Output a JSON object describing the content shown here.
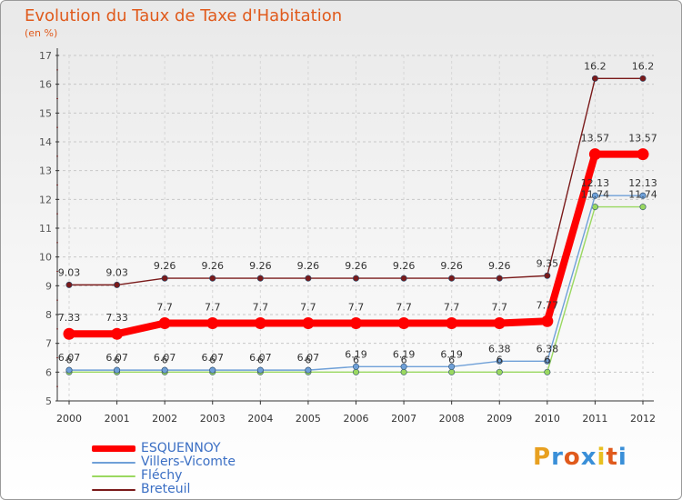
{
  "title": "Evolution du Taux de Taxe d'Habitation",
  "subtitle": "(en %)",
  "logo": {
    "text": "Proxiti",
    "colors": [
      "#e8a020",
      "#3a8fd8",
      "#e05a1c",
      "#3a8fd8",
      "#e8c020",
      "#e05a1c",
      "#3a8fd8"
    ]
  },
  "chart_data": {
    "type": "line",
    "title": "Evolution du Taux de Taxe d'Habitation",
    "ylabel": "(en %)",
    "xlabel": "",
    "ylim": [
      5,
      17
    ],
    "y_ticks": [
      "5",
      "6",
      "7",
      "8",
      "9",
      "10",
      "11",
      "12",
      "13",
      "14",
      "15",
      "16",
      "17"
    ],
    "categories": [
      "2000",
      "2001",
      "2002",
      "2003",
      "2004",
      "2005",
      "2006",
      "2007",
      "2008",
      "2009",
      "2010",
      "2011",
      "2012"
    ],
    "legend_position": "bottom-left",
    "series": [
      {
        "name": "ESQUENNOY",
        "color": "#ff0000",
        "values": [
          7.33,
          7.33,
          7.7,
          7.7,
          7.7,
          7.7,
          7.7,
          7.7,
          7.7,
          7.7,
          7.77,
          13.57,
          13.57
        ],
        "labels": [
          "7.33",
          "7.33",
          "7.7",
          "7.7",
          "7.7",
          "7.7",
          "7.7",
          "7.7",
          "7.7",
          "7.7",
          "7.77",
          "13.57",
          "13.57"
        ]
      },
      {
        "name": "Villers-Vicomte",
        "color": "#6fa0d8",
        "values": [
          6.07,
          6.07,
          6.07,
          6.07,
          6.07,
          6.07,
          6.19,
          6.19,
          6.19,
          6.38,
          6.38,
          12.13,
          12.13
        ],
        "labels": [
          "6.07",
          "6.07",
          "6.07",
          "6.07",
          "6.07",
          "6.07",
          "6.19",
          "6.19",
          "6.19",
          "6.38",
          "6.38",
          "12.13",
          "12.13"
        ]
      },
      {
        "name": "Fléchy",
        "color": "#9ad860",
        "values": [
          6,
          6,
          6,
          6,
          6,
          6,
          6,
          6,
          6,
          6,
          6,
          11.74,
          11.74
        ],
        "labels": [
          "6",
          "6",
          "6",
          "6",
          "6",
          "6",
          "6",
          "6",
          "6",
          "6",
          "6",
          "11.74",
          "11.74"
        ]
      },
      {
        "name": "Breteuil",
        "color": "#7a1a1a",
        "values": [
          9.03,
          9.03,
          9.26,
          9.26,
          9.26,
          9.26,
          9.26,
          9.26,
          9.26,
          9.26,
          9.35,
          16.2,
          16.2
        ],
        "labels": [
          "9.03",
          "9.03",
          "9.26",
          "9.26",
          "9.26",
          "9.26",
          "9.26",
          "9.26",
          "9.26",
          "9.26",
          "9.35",
          "16.2",
          "16.2"
        ]
      }
    ]
  }
}
